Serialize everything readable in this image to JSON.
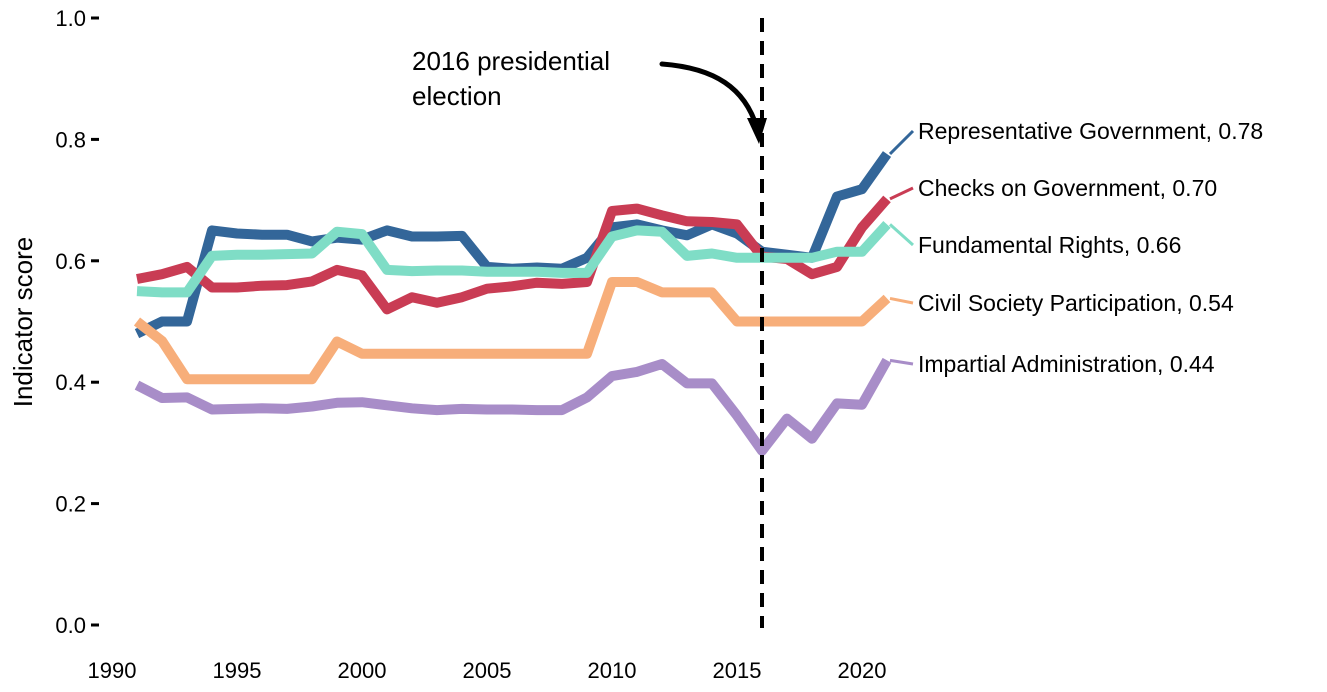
{
  "chart_data": {
    "type": "line",
    "title": "",
    "xlabel": "",
    "ylabel": "Indicator score",
    "xlim": [
      1990,
      2021
    ],
    "ylim": [
      0.0,
      1.0
    ],
    "x_ticks": [
      1990,
      1995,
      2000,
      2005,
      2010,
      2015,
      2020
    ],
    "y_ticks": [
      0.0,
      0.2,
      0.4,
      0.6,
      0.8,
      1.0
    ],
    "y_tick_labels": [
      "0.0",
      "0.2",
      "0.4",
      "0.6",
      "0.8",
      "1.0"
    ],
    "grid": false,
    "legend": "direct labels at right end of lines",
    "x": [
      1991,
      1992,
      1993,
      1994,
      1995,
      1996,
      1997,
      1998,
      1999,
      2000,
      2001,
      2002,
      2003,
      2004,
      2005,
      2006,
      2007,
      2008,
      2009,
      2010,
      2011,
      2012,
      2013,
      2014,
      2015,
      2016,
      2017,
      2018,
      2019,
      2020,
      2021
    ],
    "series": [
      {
        "name": "Representative Government",
        "end_label": "Representative Government, 0.78",
        "color": "#336699",
        "values": [
          0.48,
          0.5,
          0.5,
          0.65,
          0.645,
          0.643,
          0.643,
          0.632,
          0.638,
          0.635,
          0.65,
          0.64,
          0.64,
          0.641,
          0.59,
          0.587,
          0.589,
          0.587,
          0.605,
          0.655,
          0.66,
          0.65,
          0.642,
          0.66,
          0.645,
          0.615,
          0.61,
          0.605,
          0.706,
          0.718,
          0.776
        ]
      },
      {
        "name": "Checks on Government",
        "end_label": "Checks on Government, 0.70",
        "color": "#C93C54",
        "values": [
          0.57,
          0.578,
          0.59,
          0.556,
          0.556,
          0.559,
          0.56,
          0.566,
          0.585,
          0.576,
          0.52,
          0.54,
          0.531,
          0.54,
          0.554,
          0.558,
          0.564,
          0.562,
          0.565,
          0.682,
          0.686,
          0.675,
          0.665,
          0.664,
          0.66,
          0.607,
          0.603,
          0.578,
          0.59,
          0.655,
          0.702
        ]
      },
      {
        "name": "Fundamental Rights",
        "end_label": "Fundamental Rights, 0.66",
        "color": "#7FDDC6",
        "values": [
          0.55,
          0.548,
          0.548,
          0.608,
          0.61,
          0.61,
          0.611,
          0.612,
          0.648,
          0.644,
          0.585,
          0.583,
          0.584,
          0.584,
          0.582,
          0.582,
          0.582,
          0.58,
          0.58,
          0.64,
          0.65,
          0.648,
          0.608,
          0.612,
          0.605,
          0.605,
          0.605,
          0.605,
          0.615,
          0.615,
          0.66
        ]
      },
      {
        "name": "Civil Society Participation",
        "end_label": "Civil Society Participation, 0.54",
        "color": "#F7AE7A",
        "values": [
          0.5,
          0.468,
          0.405,
          0.405,
          0.405,
          0.405,
          0.405,
          0.405,
          0.467,
          0.447,
          0.447,
          0.447,
          0.447,
          0.447,
          0.447,
          0.447,
          0.447,
          0.447,
          0.447,
          0.565,
          0.565,
          0.548,
          0.548,
          0.548,
          0.5,
          0.5,
          0.5,
          0.5,
          0.5,
          0.5,
          0.538
        ]
      },
      {
        "name": "Impartial Administration",
        "end_label": "Impartial Administration, 0.44",
        "color": "#A88DC8",
        "values": [
          0.395,
          0.374,
          0.375,
          0.355,
          0.356,
          0.357,
          0.356,
          0.36,
          0.366,
          0.367,
          0.362,
          0.357,
          0.354,
          0.356,
          0.355,
          0.355,
          0.354,
          0.354,
          0.375,
          0.41,
          0.417,
          0.43,
          0.398,
          0.398,
          0.345,
          0.287,
          0.34,
          0.307,
          0.365,
          0.363,
          0.436
        ]
      }
    ],
    "annotations": [
      {
        "type": "vline",
        "x": 2016,
        "style": "dashed",
        "color": "#000000",
        "text_lines": [
          "2016 presidential",
          "election"
        ]
      }
    ]
  }
}
